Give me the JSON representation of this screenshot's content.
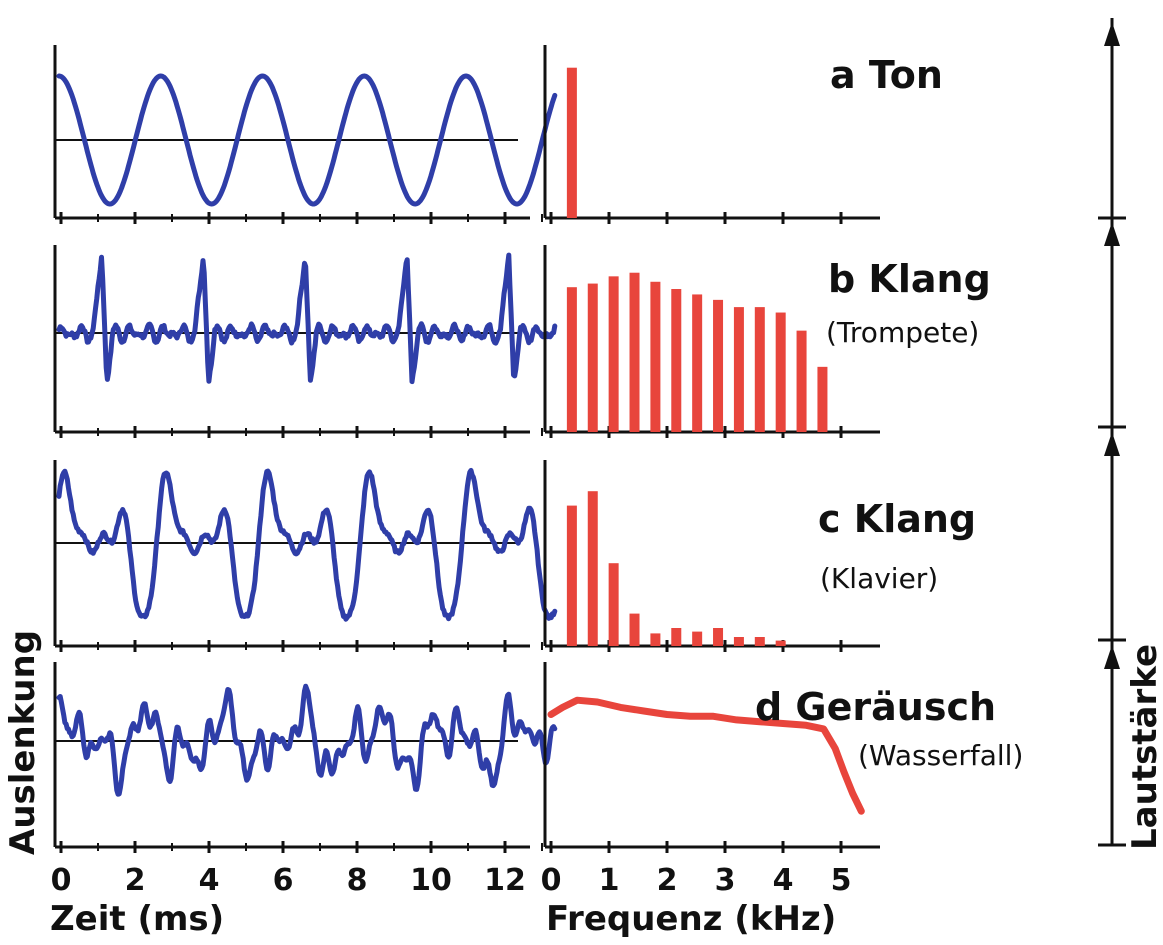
{
  "chart_data": [
    {
      "type": "line",
      "panel": "a",
      "title": "a Ton",
      "series": [
        {
          "label": "Auslenkung",
          "shape": "sine",
          "color": "#2f3ea8"
        }
      ],
      "xlim": [
        0,
        13.4
      ],
      "period_ms": 2.75,
      "spectrum": {
        "type": "bar",
        "color": "#e8453c",
        "x_khz": [
          0.36
        ],
        "values": [
          0.9
        ]
      }
    },
    {
      "type": "line",
      "panel": "b",
      "title": "b Klang",
      "subtitle": "(Trompete)",
      "series": [
        {
          "label": "Auslenkung",
          "shape": "spiky",
          "color": "#2f3ea8"
        }
      ],
      "xlim": [
        0,
        13.4
      ],
      "period_ms": 2.75,
      "spectrum": {
        "type": "bar",
        "color": "#e8453c",
        "x_khz": [
          0.36,
          0.72,
          1.08,
          1.44,
          1.8,
          2.16,
          2.52,
          2.88,
          3.24,
          3.6,
          3.96,
          4.32,
          4.68
        ],
        "values": [
          0.8,
          0.82,
          0.86,
          0.88,
          0.83,
          0.79,
          0.76,
          0.73,
          0.69,
          0.69,
          0.66,
          0.56,
          0.36
        ]
      }
    },
    {
      "type": "line",
      "panel": "c",
      "title": "c Klang",
      "subtitle": "(Klavier)",
      "series": [
        {
          "label": "Auslenkung",
          "shape": "piano",
          "color": "#2f3ea8"
        }
      ],
      "xlim": [
        0,
        13.4
      ],
      "period_ms": 2.75,
      "spectrum": {
        "type": "bar",
        "color": "#e8453c",
        "x_khz": [
          0.36,
          0.72,
          1.08,
          1.44,
          1.8,
          2.16,
          2.52,
          2.88,
          3.24,
          3.6,
          3.96
        ],
        "values": [
          0.78,
          0.86,
          0.46,
          0.18,
          0.07,
          0.1,
          0.08,
          0.1,
          0.05,
          0.05,
          0.03
        ]
      }
    },
    {
      "type": "line",
      "panel": "d",
      "title": "d Geräusch",
      "subtitle": "(Wasserfall)",
      "series": [
        {
          "label": "Auslenkung",
          "shape": "noise",
          "color": "#2f3ea8"
        }
      ],
      "xlim": [
        0,
        13.4
      ],
      "spectrum": {
        "type": "area",
        "color": "#e8453c",
        "x_khz": [
          0,
          0.2,
          0.45,
          0.8,
          1.2,
          1.6,
          2.0,
          2.4,
          2.8,
          3.2,
          3.6,
          4.0,
          4.4,
          4.7,
          4.9,
          5.05,
          5.2,
          5.35
        ],
        "values": [
          0.74,
          0.78,
          0.82,
          0.81,
          0.78,
          0.76,
          0.74,
          0.73,
          0.73,
          0.71,
          0.7,
          0.69,
          0.68,
          0.66,
          0.55,
          0.42,
          0.3,
          0.2
        ]
      }
    }
  ],
  "time_axis": {
    "label": "Zeit (ms)",
    "ticks": [
      "0",
      "2",
      "4",
      "6",
      "8",
      "10",
      "12"
    ]
  },
  "freq_axis": {
    "label": "Frequenz (kHz)",
    "ticks": [
      "0",
      "1",
      "2",
      "3",
      "4",
      "5"
    ]
  },
  "y_axis_label": "Auslenkung",
  "right_axis_label": "Lautstärke",
  "colors": {
    "wave": "#2f3ea8",
    "spectrum": "#e8453c",
    "axis": "#111111"
  }
}
